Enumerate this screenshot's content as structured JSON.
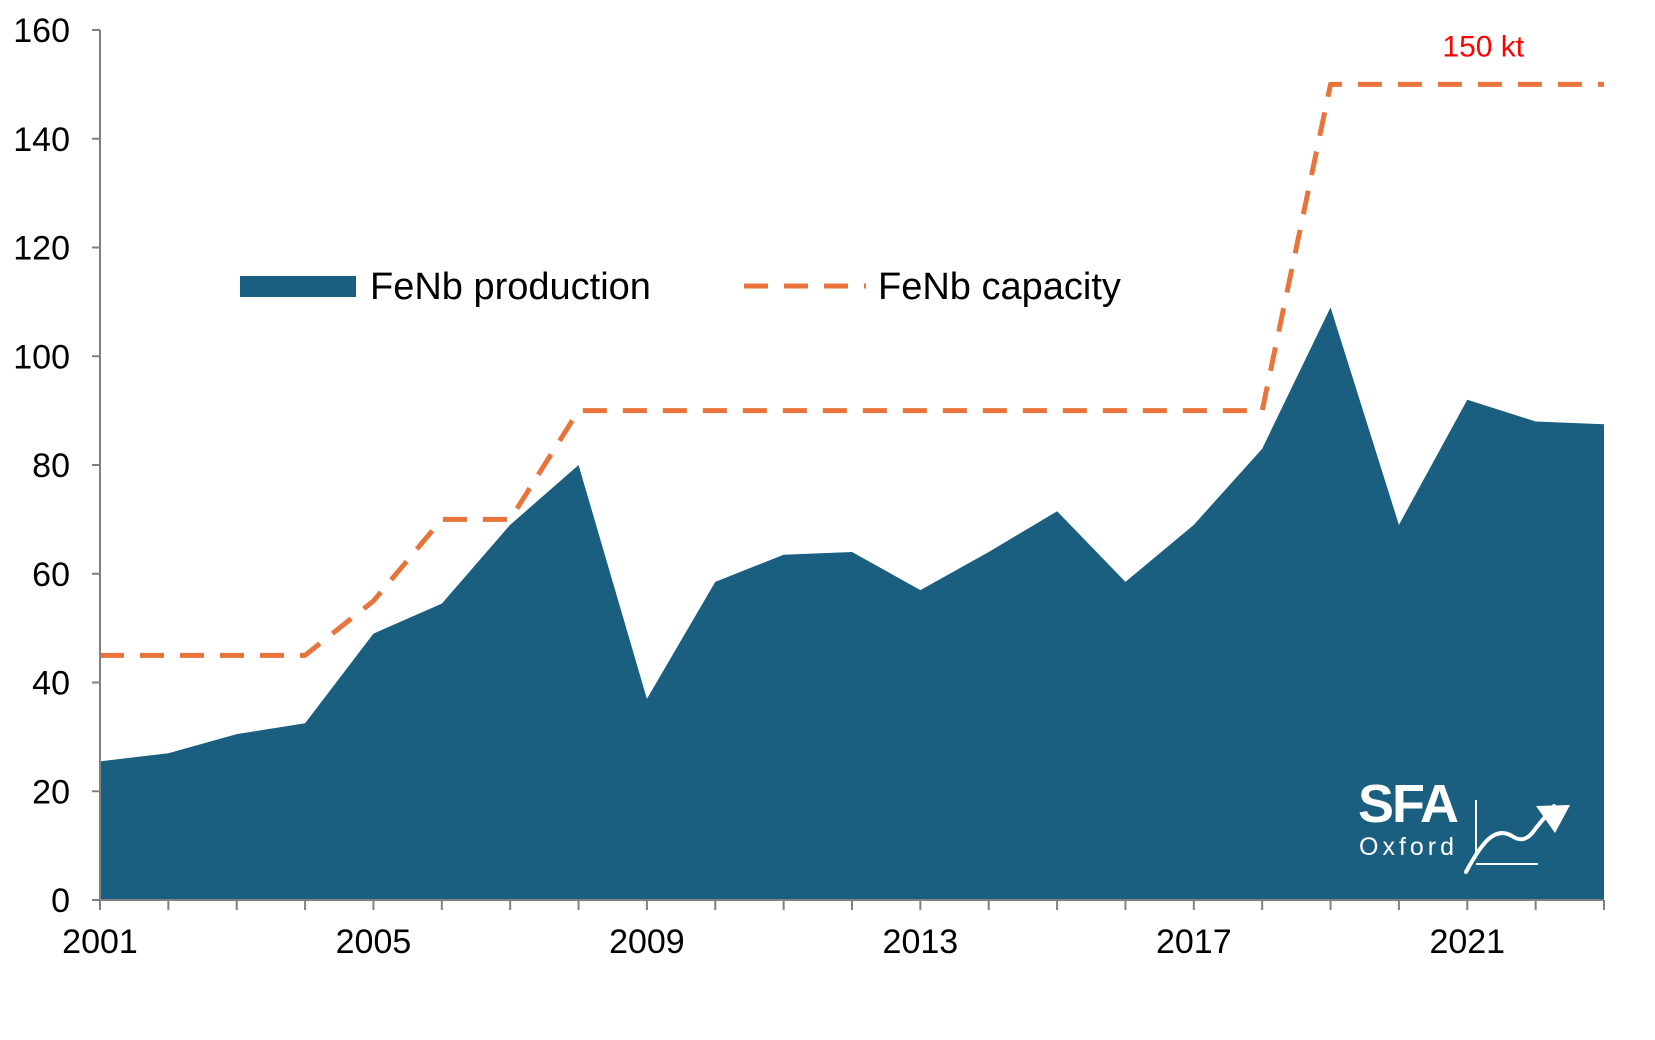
{
  "chart_data": {
    "type": "area",
    "title": "",
    "xlabel": "",
    "ylabel": "",
    "x": [
      2001,
      2002,
      2003,
      2004,
      2005,
      2006,
      2007,
      2008,
      2009,
      2010,
      2011,
      2012,
      2013,
      2014,
      2015,
      2016,
      2017,
      2018,
      2019,
      2020,
      2021,
      2022,
      2023
    ],
    "x_tick_labels": [
      "2001",
      "2005",
      "2009",
      "2013",
      "2017",
      "2021"
    ],
    "y_tick_labels": [
      "0",
      "20",
      "40",
      "60",
      "80",
      "100",
      "120",
      "140",
      "160"
    ],
    "ylim": [
      0,
      160
    ],
    "grid": false,
    "legend_position": "upper-left inside plot",
    "series": [
      {
        "name": "FeNb production",
        "style": "filled area",
        "color": "#1a5e80",
        "values": [
          25.5,
          27,
          30.5,
          32.5,
          49,
          54.5,
          69,
          80,
          37,
          58.5,
          63.5,
          64,
          57,
          64,
          71.5,
          58.5,
          69,
          83,
          109,
          69,
          92,
          88,
          87.5
        ]
      },
      {
        "name": "FeNb capacity",
        "style": "dashed line",
        "color": "#e8743b",
        "values": [
          45,
          45,
          45,
          45,
          55,
          70,
          70,
          90,
          90,
          90,
          90,
          90,
          90,
          90,
          90,
          90,
          90,
          90,
          150,
          150,
          150,
          150,
          150
        ]
      }
    ],
    "annotations": [
      {
        "text": "150 kt",
        "color": "#ff0000",
        "x": 2021,
        "y": 157.5
      }
    ]
  },
  "legend": {
    "production_label": "FeNb production",
    "capacity_label": "FeNb capacity"
  },
  "logo": {
    "main": "SFA",
    "sub": "Oxford"
  },
  "colors": {
    "production": "#1a5e80",
    "capacity": "#e8743b",
    "annotation": "#ff0000",
    "axis": "#808080"
  }
}
